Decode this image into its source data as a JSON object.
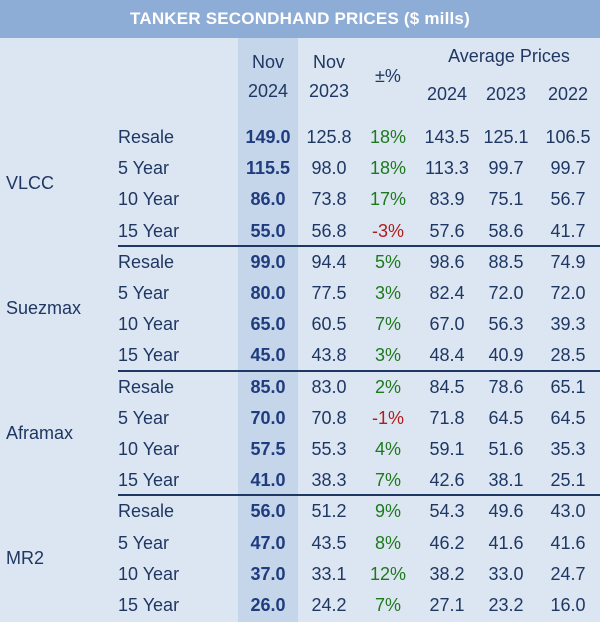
{
  "title": "TANKER SECONDHAND PRICES ($ mills)",
  "headers": {
    "nov2024_line1": "Nov",
    "nov2024_line2": "2024",
    "nov2023_line1": "Nov",
    "nov2023_line2": "2023",
    "pct": "±%",
    "avg": "Average Prices",
    "y2024": "2024",
    "y2023": "2023",
    "y2022": "2022"
  },
  "groups": [
    {
      "vessel": "VLCC",
      "rows": [
        {
          "cat": "Resale",
          "nov2024": "149.0",
          "nov2023": "125.8",
          "pct": "18%",
          "a2024": "143.5",
          "a2023": "125.1",
          "a2022": "106.5"
        },
        {
          "cat": "5 Year",
          "nov2024": "115.5",
          "nov2023": "98.0",
          "pct": "18%",
          "a2024": "113.3",
          "a2023": "99.7",
          "a2022": "99.7"
        },
        {
          "cat": "10 Year",
          "nov2024": "86.0",
          "nov2023": "73.8",
          "pct": "17%",
          "a2024": "83.9",
          "a2023": "75.1",
          "a2022": "56.7"
        },
        {
          "cat": "15 Year",
          "nov2024": "55.0",
          "nov2023": "56.8",
          "pct": "-3%",
          "a2024": "57.6",
          "a2023": "58.6",
          "a2022": "41.7"
        }
      ]
    },
    {
      "vessel": "Suezmax",
      "rows": [
        {
          "cat": "Resale",
          "nov2024": "99.0",
          "nov2023": "94.4",
          "pct": "5%",
          "a2024": "98.6",
          "a2023": "88.5",
          "a2022": "74.9"
        },
        {
          "cat": "5 Year",
          "nov2024": "80.0",
          "nov2023": "77.5",
          "pct": "3%",
          "a2024": "82.4",
          "a2023": "72.0",
          "a2022": "72.0"
        },
        {
          "cat": "10 Year",
          "nov2024": "65.0",
          "nov2023": "60.5",
          "pct": "7%",
          "a2024": "67.0",
          "a2023": "56.3",
          "a2022": "39.3"
        },
        {
          "cat": "15 Year",
          "nov2024": "45.0",
          "nov2023": "43.8",
          "pct": "3%",
          "a2024": "48.4",
          "a2023": "40.9",
          "a2022": "28.5"
        }
      ]
    },
    {
      "vessel": "Aframax",
      "rows": [
        {
          "cat": "Resale",
          "nov2024": "85.0",
          "nov2023": "83.0",
          "pct": "2%",
          "a2024": "84.5",
          "a2023": "78.6",
          "a2022": "65.1"
        },
        {
          "cat": "5 Year",
          "nov2024": "70.0",
          "nov2023": "70.8",
          "pct": "-1%",
          "a2024": "71.8",
          "a2023": "64.5",
          "a2022": "64.5"
        },
        {
          "cat": "10 Year",
          "nov2024": "57.5",
          "nov2023": "55.3",
          "pct": "4%",
          "a2024": "59.1",
          "a2023": "51.6",
          "a2022": "35.3"
        },
        {
          "cat": "15 Year",
          "nov2024": "41.0",
          "nov2023": "38.3",
          "pct": "7%",
          "a2024": "42.6",
          "a2023": "38.1",
          "a2022": "25.1"
        }
      ]
    },
    {
      "vessel": "MR2",
      "rows": [
        {
          "cat": "Resale",
          "nov2024": "56.0",
          "nov2023": "51.2",
          "pct": "9%",
          "a2024": "54.3",
          "a2023": "49.6",
          "a2022": "43.0"
        },
        {
          "cat": "5 Year",
          "nov2024": "47.0",
          "nov2023": "43.5",
          "pct": "8%",
          "a2024": "46.2",
          "a2023": "41.6",
          "a2022": "41.6"
        },
        {
          "cat": "10 Year",
          "nov2024": "37.0",
          "nov2023": "33.1",
          "pct": "12%",
          "a2024": "38.2",
          "a2023": "33.0",
          "a2022": "24.7"
        },
        {
          "cat": "15 Year",
          "nov2024": "26.0",
          "nov2023": "24.2",
          "pct": "7%",
          "a2024": "27.1",
          "a2023": "23.2",
          "a2022": "16.0"
        }
      ]
    }
  ],
  "colors": {
    "title_bg": "#8eadd6",
    "body_bg": "#dce6f2",
    "highlight_col": "#c5d5ea",
    "text": "#1f3763",
    "positive": "#1c7a1c",
    "negative": "#b01c1c"
  }
}
